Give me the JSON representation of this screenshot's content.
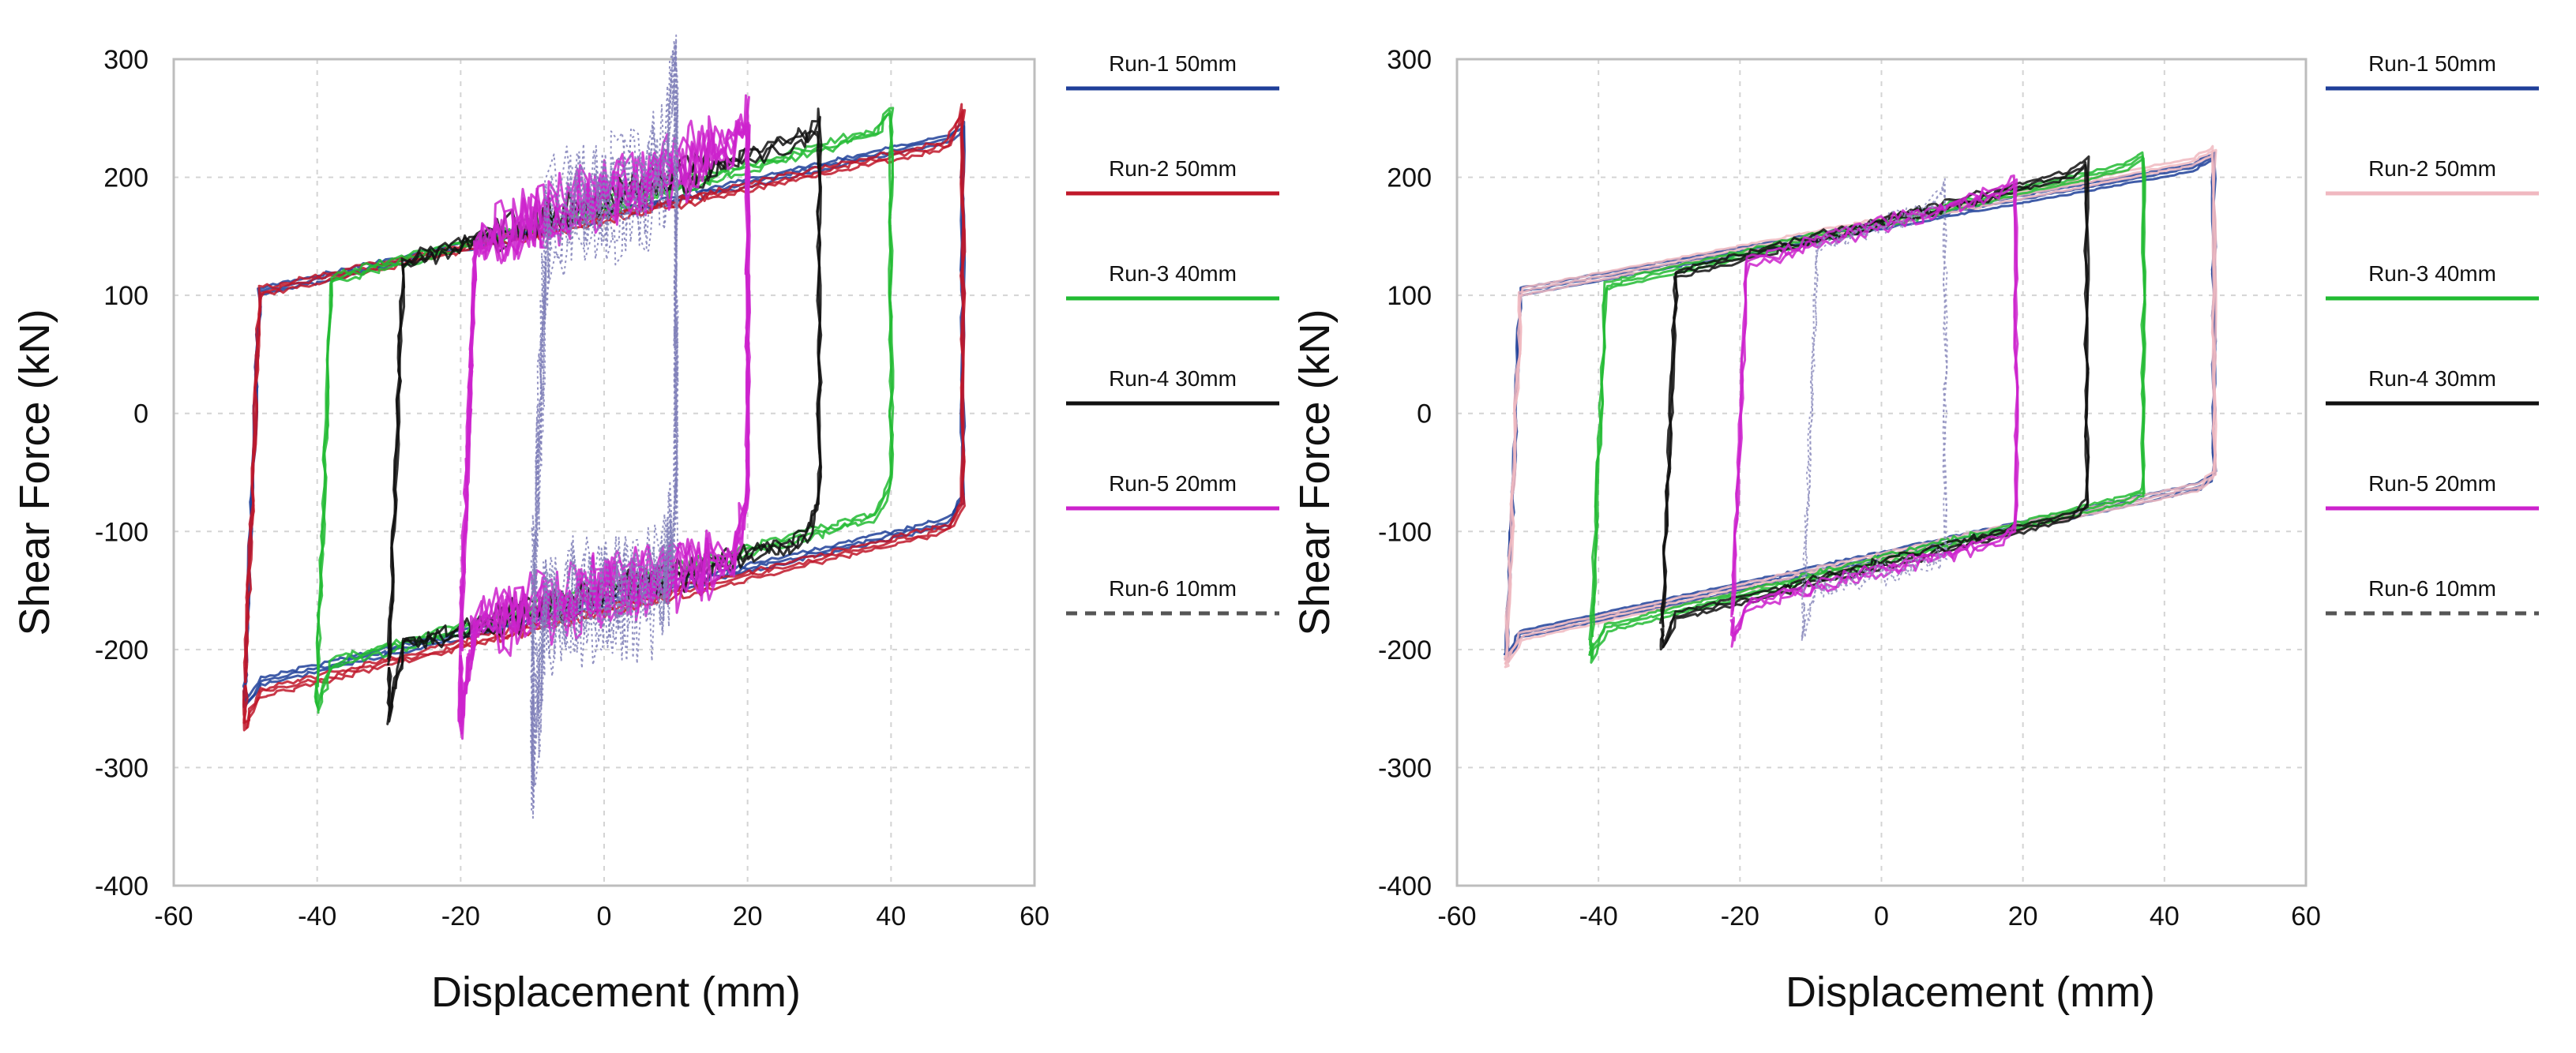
{
  "chart_data": [
    {
      "type": "line",
      "xlabel": "Displacement (mm)",
      "ylabel": "Shear Force (kN)",
      "xlim": [
        -60,
        60
      ],
      "ylim": [
        -400,
        300
      ],
      "grid": true,
      "legend_position": "right",
      "x_ticks": [
        "-60",
        "-40",
        "-20",
        "0",
        "20",
        "40",
        "60"
      ],
      "y_ticks": [
        "300",
        "200",
        "100",
        "0",
        "-100",
        "-200",
        "-300",
        "-400"
      ],
      "series": [
        {
          "name": "Run-1 50mm",
          "color": "#1f3f99",
          "dash": "solid",
          "amplitude": 50,
          "noise": 3,
          "x": [
            -50,
            -48,
            48,
            50,
            50,
            48,
            -48,
            -50,
            -50
          ],
          "y": [
            -215,
            100,
            230,
            240,
            -75,
            -95,
            -230,
            -250,
            -215
          ]
        },
        {
          "name": "Run-2 50mm",
          "color": "#c0182a",
          "dash": "solid",
          "amplitude": 50,
          "noise": 4,
          "x": [
            -50,
            -48,
            48,
            50,
            50,
            48,
            -48,
            -50,
            -50
          ],
          "y": [
            -230,
            100,
            225,
            255,
            -80,
            -100,
            -240,
            -270,
            -230
          ]
        },
        {
          "name": "Run-3 40mm",
          "color": "#22bb33",
          "dash": "solid",
          "amplitude": 40,
          "noise": 6,
          "x": [
            -40,
            -38,
            38,
            40,
            40,
            38,
            -38,
            -40,
            -40
          ],
          "y": [
            -230,
            110,
            235,
            255,
            -60,
            -90,
            -215,
            -255,
            -230
          ]
        },
        {
          "name": "Run-4 30mm",
          "color": "#111111",
          "dash": "solid",
          "amplitude": 30,
          "noise": 14,
          "x": [
            -30,
            -28,
            28,
            30,
            30,
            28,
            -28,
            -30,
            -30
          ],
          "y": [
            -215,
            125,
            230,
            245,
            -75,
            -110,
            -200,
            -265,
            -215
          ]
        },
        {
          "name": "Run-5 20mm",
          "color": "#cc22cc",
          "dash": "solid",
          "amplitude": 20,
          "noise": 28,
          "x": [
            -20,
            -18,
            18,
            20,
            20,
            18,
            -18,
            -20,
            -20
          ],
          "y": [
            -205,
            135,
            220,
            245,
            -80,
            -130,
            -185,
            -270,
            -205
          ]
        },
        {
          "name": "Run-6 10mm",
          "color": "#8080b8",
          "dash": "dotted",
          "amplitude": 10,
          "noise": 55,
          "x": [
            -10,
            -8,
            8,
            10,
            10,
            8,
            -8,
            -10,
            -10
          ],
          "y": [
            -190,
            150,
            195,
            265,
            -90,
            -160,
            -175,
            -300,
            -190
          ]
        }
      ]
    },
    {
      "type": "line",
      "xlabel": "Displacement (mm)",
      "ylabel": "Shear Force (kN)",
      "xlim": [
        -60,
        60
      ],
      "ylim": [
        -400,
        300
      ],
      "grid": true,
      "legend_position": "right",
      "x_ticks": [
        "-60",
        "-40",
        "-20",
        "0",
        "20",
        "40",
        "60"
      ],
      "y_ticks": [
        "300",
        "200",
        "100",
        "0",
        "-100",
        "-200",
        "-300",
        "-400"
      ],
      "series": [
        {
          "name": "Run-1 50mm",
          "color": "#1f3f99",
          "dash": "solid",
          "amplitude": 50,
          "noise": 1,
          "x": [
            -53,
            -51,
            44,
            47,
            47,
            45,
            -51,
            -53,
            -53
          ],
          "y": [
            -205,
            100,
            205,
            215,
            -55,
            -65,
            -190,
            -210,
            -205
          ]
        },
        {
          "name": "Run-2 50mm",
          "color": "#f0b8c0",
          "dash": "solid",
          "amplitude": 50,
          "noise": 1,
          "x": [
            -53,
            -51,
            44,
            47,
            47,
            45,
            -51,
            -53,
            -53
          ],
          "y": [
            -210,
            100,
            210,
            220,
            -55,
            -65,
            -192,
            -215,
            -210
          ]
        },
        {
          "name": "Run-3 40mm",
          "color": "#22bb33",
          "dash": "solid",
          "amplitude": 40,
          "noise": 2,
          "x": [
            -41,
            -39,
            34,
            37,
            37,
            35,
            -39,
            -41,
            -41
          ],
          "y": [
            -195,
            105,
            205,
            215,
            -70,
            -75,
            -185,
            -210,
            -195
          ]
        },
        {
          "name": "Run-4 30mm",
          "color": "#111111",
          "dash": "solid",
          "amplitude": 30,
          "noise": 3,
          "x": [
            -31,
            -29,
            27,
            29,
            29,
            27,
            -29,
            -31,
            -31
          ],
          "y": [
            -185,
            115,
            200,
            210,
            -80,
            -90,
            -175,
            -200,
            -185
          ]
        },
        {
          "name": "Run-5 20mm",
          "color": "#cc22cc",
          "dash": "solid",
          "amplitude": 20,
          "noise": 5,
          "x": [
            -21,
            -19,
            17,
            19,
            19,
            17,
            -19,
            -21,
            -21
          ],
          "y": [
            -175,
            125,
            185,
            195,
            -100,
            -110,
            -165,
            -195,
            -175
          ]
        },
        {
          "name": "Run-6 10mm",
          "color": "#9090c0",
          "dash": "dotted",
          "amplitude": 10,
          "noise": 8,
          "x": [
            -11,
            -9,
            7,
            9,
            9,
            7,
            -9,
            -11,
            -11
          ],
          "y": [
            -160,
            140,
            170,
            190,
            -120,
            -130,
            -150,
            -190,
            -160
          ]
        }
      ]
    }
  ]
}
